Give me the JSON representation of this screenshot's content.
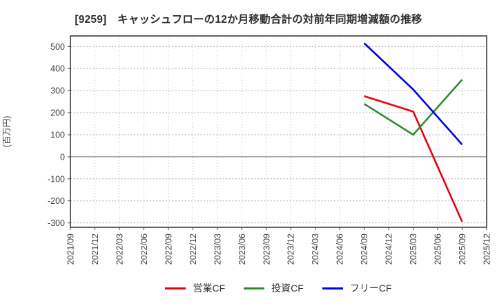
{
  "chart_data": {
    "type": "line",
    "title": "[9259]　キャッシュフローの12か月移動合計の対前年同期増減額の推移",
    "ylabel": "(百万円)",
    "xlabel": "",
    "x_ticks": [
      "2021/09",
      "2021/12",
      "2022/03",
      "2022/06",
      "2022/09",
      "2022/12",
      "2023/03",
      "2023/06",
      "2023/09",
      "2023/12",
      "2024/03",
      "2024/06",
      "2024/09",
      "2024/12",
      "2025/03",
      "2025/06",
      "2025/09",
      "2025/12"
    ],
    "y_ticks": [
      500,
      400,
      300,
      200,
      100,
      0,
      -100,
      -200,
      -300
    ],
    "ylim": [
      -320,
      548
    ],
    "grid": true,
    "legend_position": "bottom-center",
    "series": [
      {
        "name": "営業CF",
        "color": "#e8000d",
        "x": [
          "2024/09",
          "2025/03",
          "2025/09"
        ],
        "values": [
          275,
          205,
          -295
        ]
      },
      {
        "name": "投資CF",
        "color": "#2e8b2e",
        "x": [
          "2024/09",
          "2025/03",
          "2025/09"
        ],
        "values": [
          240,
          100,
          350
        ]
      },
      {
        "name": "フリーCF",
        "color": "#0000ee",
        "x": [
          "2024/09",
          "2025/03",
          "2025/09"
        ],
        "values": [
          515,
          305,
          55
        ]
      }
    ]
  }
}
